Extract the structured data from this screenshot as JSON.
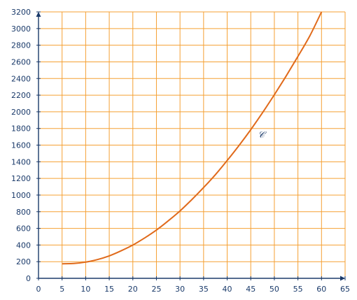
{
  "chart_data": {
    "type": "line",
    "title": "",
    "xlabel": "",
    "ylabel": "",
    "xlim": [
      0,
      65
    ],
    "ylim": [
      0,
      3200
    ],
    "x_ticks": [
      0,
      5,
      10,
      15,
      20,
      25,
      30,
      35,
      40,
      45,
      50,
      55,
      60,
      65
    ],
    "y_ticks": [
      0,
      200,
      400,
      600,
      800,
      1000,
      1200,
      1400,
      1600,
      1800,
      2000,
      2200,
      2400,
      2600,
      2800,
      3000,
      3200
    ],
    "grid": true,
    "curve_label": "𝒞",
    "colors": {
      "grid": "#f5a033",
      "curve": "#e06a1b",
      "axis": "#1a3a6a",
      "text": "#1a3a6a"
    },
    "series": [
      {
        "x": [
          5,
          7.5,
          10,
          12.5,
          15,
          17.5,
          20,
          22.5,
          25,
          27.5,
          30,
          32.5,
          35,
          37.5,
          40,
          42.5,
          45,
          47.5,
          50,
          52.5,
          55,
          57.5,
          60
        ],
        "values": [
          175,
          178,
          195,
          225,
          270,
          330,
          400,
          485,
          580,
          690,
          810,
          945,
          1090,
          1245,
          1415,
          1595,
          1785,
          1990,
          2205,
          2430,
          2665,
          2910,
          3200
        ]
      }
    ]
  }
}
